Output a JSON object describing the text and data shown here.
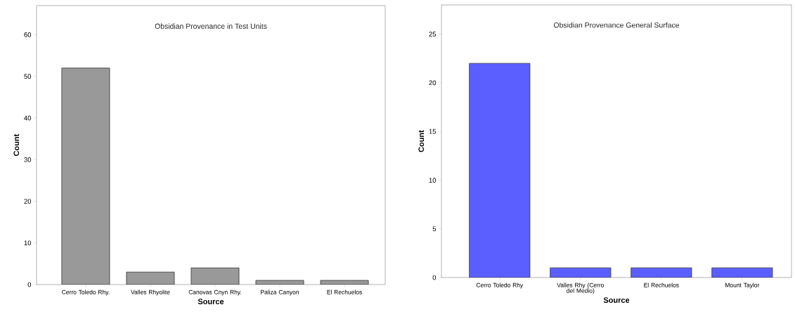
{
  "chart_data": [
    {
      "type": "bar",
      "title": "Obsidian Provenance in Test Units",
      "xlabel": "Source",
      "ylabel": "Count",
      "categories": [
        "Cerro Toledo Rhy.",
        "Valles Rhyolite",
        "Canovas Cnyn Rhy.",
        "Paliza Canyon",
        "El Rechuelos"
      ],
      "values": [
        52,
        3,
        4,
        1,
        1
      ],
      "color": "#999999",
      "ylim": [
        0,
        67
      ],
      "yticks": [
        0,
        10,
        20,
        30,
        40,
        50,
        60
      ]
    },
    {
      "type": "bar",
      "title": "Obsidian Provenance General Surface",
      "xlabel": "Source",
      "ylabel": "Count",
      "categories": [
        "Cerro Toledo Rhy",
        "Valles Rhy (Cerro del Medio)",
        "El Rechuelos",
        "Mount Taylor"
      ],
      "values": [
        22,
        1,
        1,
        1
      ],
      "color": "#5b5fff",
      "ylim": [
        0,
        28
      ],
      "yticks": [
        0,
        5,
        10,
        15,
        20,
        25
      ]
    }
  ]
}
